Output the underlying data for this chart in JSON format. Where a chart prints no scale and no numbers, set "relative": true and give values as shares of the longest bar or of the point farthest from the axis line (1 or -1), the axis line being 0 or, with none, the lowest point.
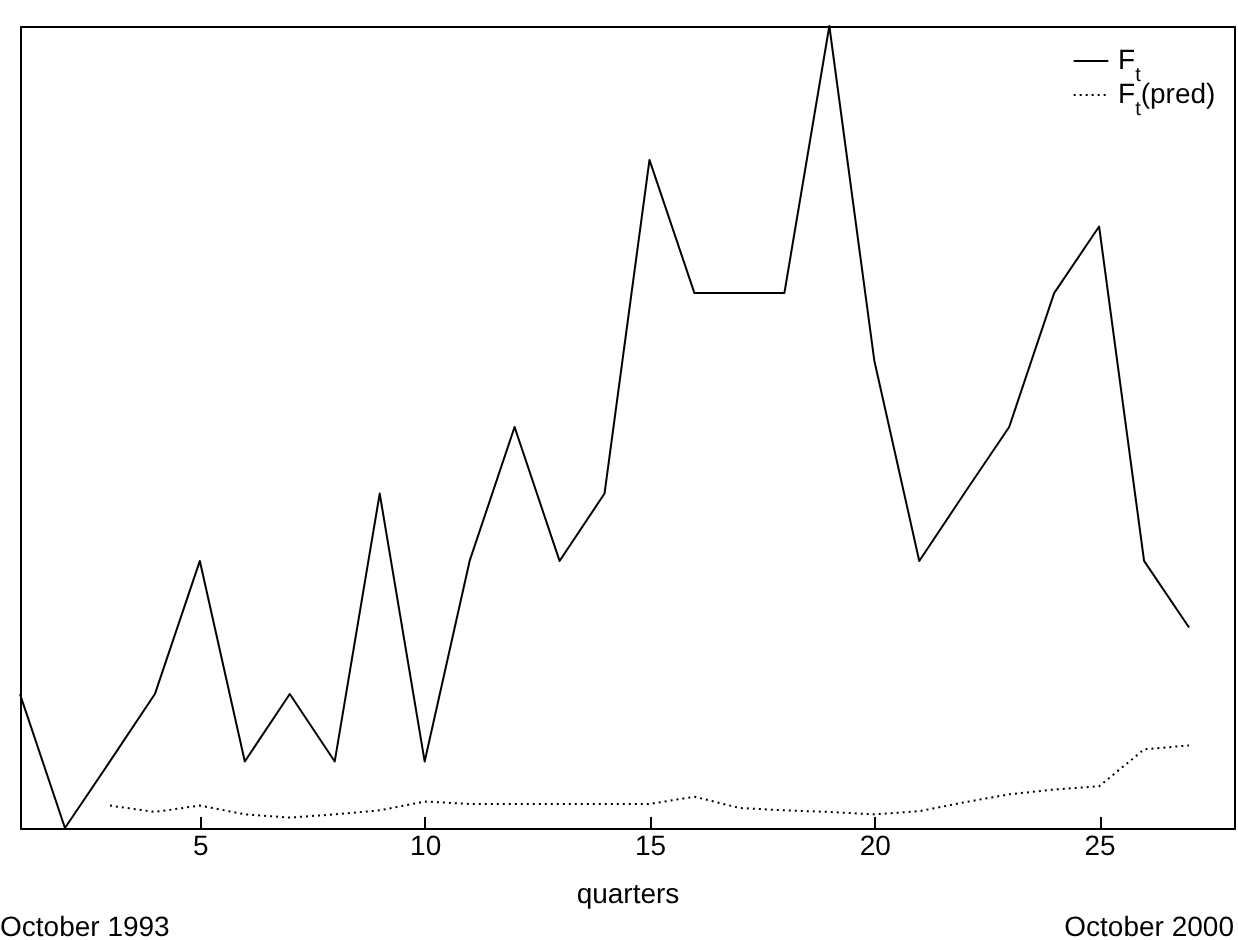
{
  "chart_data": {
    "type": "line",
    "relative": true,
    "xlabel": "quarters",
    "annotations": [
      "October 1993",
      "October 2000"
    ],
    "xlim": [
      1,
      28
    ],
    "xticks": [
      5,
      10,
      15,
      20,
      25
    ],
    "grid": false,
    "legend": "top right",
    "marker": "none",
    "x": [
      1,
      2,
      3,
      4,
      5,
      6,
      7,
      8,
      9,
      10,
      11,
      12,
      13,
      14,
      15,
      16,
      17,
      18,
      19,
      20,
      21,
      22,
      23,
      24,
      25,
      26,
      27
    ],
    "series": [
      {
        "name": "F$_{t}$",
        "color": "#000000",
        "line_style": "solid",
        "values": [
          0.167,
          0,
          0.083,
          0.167,
          0.333,
          0.083,
          0.167,
          0.083,
          0.417,
          0.083,
          0.333,
          0.5,
          0.333,
          0.417,
          0.833,
          0.667,
          0.667,
          0.667,
          1,
          0.583,
          0.333,
          0.417,
          0.5,
          0.667,
          0.75,
          0.333,
          0.25
        ]
      },
      {
        "name": "F$_{t}$(pred)",
        "color": "#000000",
        "line_style": "dotted",
        "values": [
          null,
          null,
          0.028,
          0.02,
          0.028,
          0.017,
          0.013,
          0.017,
          0.022,
          0.033,
          0.03,
          0.03,
          0.03,
          0.03,
          0.03,
          0.039,
          0.025,
          0.022,
          0.02,
          0.017,
          0.021,
          0.032,
          0.042,
          0.048,
          0.052,
          0.098,
          0.103
        ]
      }
    ]
  }
}
